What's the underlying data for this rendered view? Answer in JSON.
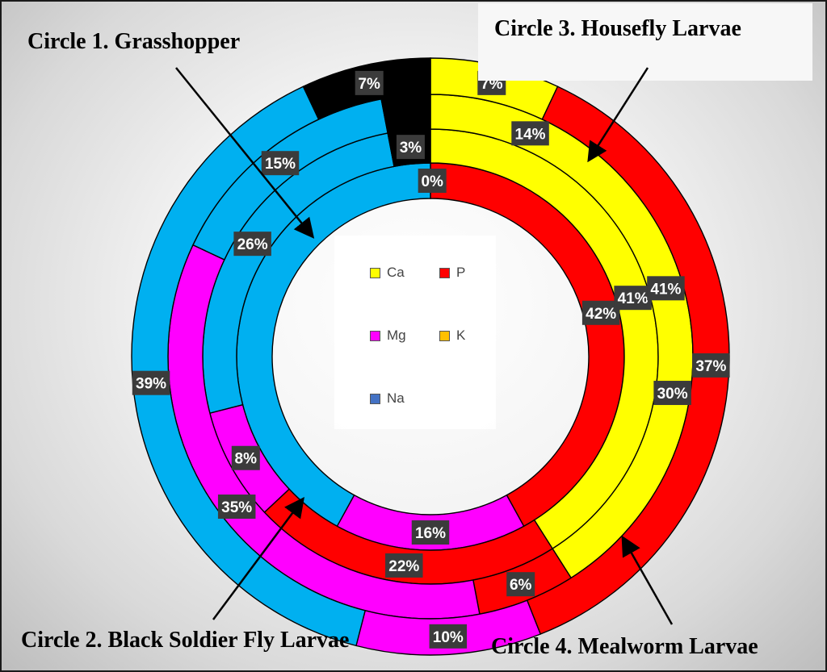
{
  "titles": {
    "circle1": "Circle 1. Grasshopper",
    "circle2": "Circle 2. Black Soldier Fly Larvae",
    "circle3": "Circle 3. Housefly Larvae",
    "circle4": "Circle 4. Mealworm Larvae"
  },
  "legend": [
    {
      "label": "Ca",
      "color": "#ffff00"
    },
    {
      "label": "P",
      "color": "#ff0000"
    },
    {
      "label": "Mg",
      "color": "#ff00ff"
    },
    {
      "label": "K",
      "color": "#ffc000"
    },
    {
      "label": "Na",
      "color": "#4472c4"
    }
  ],
  "chart_data": {
    "type": "pie",
    "variant": "multi-level doughnut",
    "categories": [
      "Ca",
      "P",
      "Mg",
      "K",
      "Na"
    ],
    "colors": {
      "Ca": "#ffff00",
      "P": "#ff0000",
      "Mg": "#ff00ff",
      "K": "#ffc000",
      "Na": "#00b0f0",
      "Other": "#000000"
    },
    "series": [
      {
        "name": "Circle 1. Grasshopper",
        "slices": [
          {
            "key": "Ca",
            "value": 0,
            "label": "0%"
          },
          {
            "key": "P",
            "value": 42,
            "label": "42%"
          },
          {
            "key": "Mg",
            "value": 16,
            "label": "16%"
          },
          {
            "key": "Na",
            "value": 42,
            "label": ""
          }
        ]
      },
      {
        "name": "Circle 2. Black Soldier Fly Larvae",
        "slices": [
          {
            "key": "Ca",
            "value": 41,
            "label": "41%"
          },
          {
            "key": "P",
            "value": 22,
            "label": "22%"
          },
          {
            "key": "Mg",
            "value": 8,
            "label": "8%"
          },
          {
            "key": "Na",
            "value": 26,
            "label": "26%"
          },
          {
            "key": "Other",
            "value": 3,
            "label": "3%"
          }
        ]
      },
      {
        "name": "Circle 3. Housefly Larvae",
        "slices": [
          {
            "key": "Ca",
            "value": 41,
            "label": "41%"
          },
          {
            "key": "P",
            "value": 6,
            "label": "6%"
          },
          {
            "key": "Mg",
            "value": 35,
            "label": "35%"
          },
          {
            "key": "Na",
            "value": 15,
            "label": "15%"
          },
          {
            "key": "Other",
            "value": 3,
            "label": ""
          }
        ]
      },
      {
        "name": "Circle 4. Mealworm Larvae",
        "slices": [
          {
            "key": "Ca",
            "value": 7,
            "label": "7%"
          },
          {
            "key": "P",
            "value": 37,
            "label": "37%"
          },
          {
            "key": "Mg",
            "value": 10,
            "label": "10%"
          },
          {
            "key": "Na",
            "value": 39,
            "label": "39%"
          },
          {
            "key": "Other",
            "value": 7,
            "label": "7%"
          }
        ]
      }
    ],
    "extra_labels": [
      "14%",
      "30%"
    ]
  }
}
